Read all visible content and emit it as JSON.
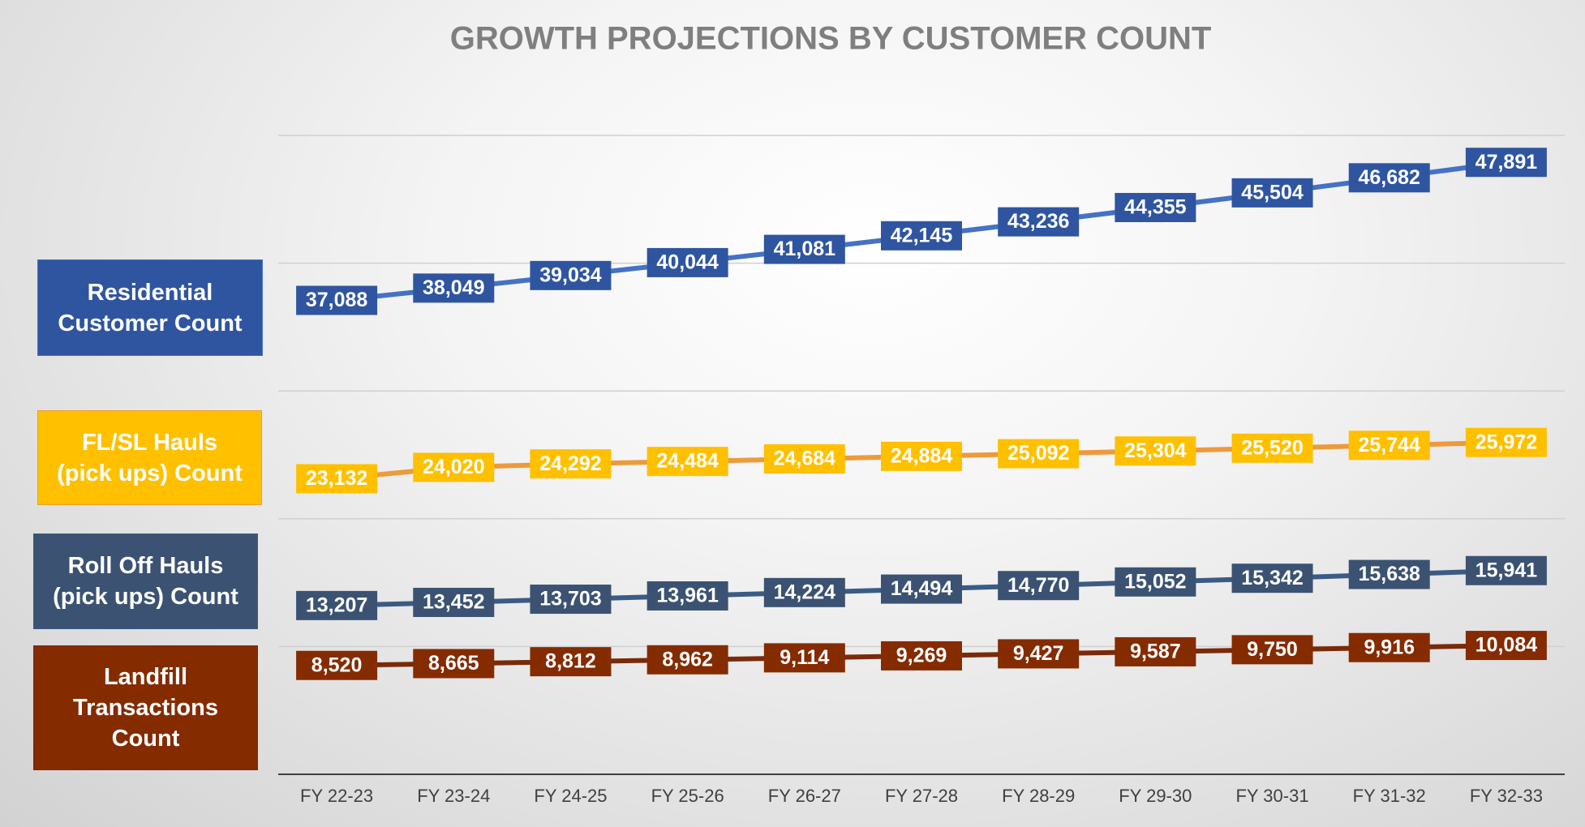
{
  "chart_data": {
    "type": "line",
    "title": "GROWTH PROJECTIONS BY CUSTOMER COUNT",
    "categories": [
      "FY 22-23",
      "FY 23-24",
      "FY 24-25",
      "FY 25-26",
      "FY 26-27",
      "FY 27-28",
      "FY 28-29",
      "FY 29-30",
      "FY 30-31",
      "FY 31-32",
      "FY 32-33"
    ],
    "ylim": [
      0,
      50000
    ],
    "yticks": [
      0,
      10000,
      20000,
      30000,
      40000,
      50000
    ],
    "grid": true,
    "series": [
      {
        "name": "Residential\nCustomer Count",
        "color": "#2f55a0",
        "line_color": "#4472c4",
        "values": [
          37088,
          38049,
          39034,
          40044,
          41081,
          42145,
          43236,
          44355,
          45504,
          46682,
          47891
        ],
        "value_labels": [
          "37,088",
          "38,049",
          "39,034",
          "40,044",
          "41,081",
          "42,145",
          "43,236",
          "44,355",
          "45,504",
          "46,682",
          "47,891"
        ]
      },
      {
        "name": "FL/SL Hauls\n(pick ups) Count",
        "color": "#ffc000",
        "line_color": "#ed9a3c",
        "values": [
          23132,
          24020,
          24292,
          24484,
          24684,
          24884,
          25092,
          25304,
          25520,
          25744,
          25972
        ],
        "value_labels": [
          "23,132",
          "24,020",
          "24,292",
          "24,484",
          "24,684",
          "24,884",
          "25,092",
          "25,304",
          "25,520",
          "25,744",
          "25,972"
        ]
      },
      {
        "name": "Roll Off Hauls\n(pick ups) Count",
        "color": "#3b5272",
        "line_color": "#3b5b85",
        "values": [
          13207,
          13452,
          13703,
          13961,
          14224,
          14494,
          14770,
          15052,
          15342,
          15638,
          15941
        ],
        "value_labels": [
          "13,207",
          "13,452",
          "13,703",
          "13,961",
          "14,224",
          "14,494",
          "14,770",
          "15,052",
          "15,342",
          "15,638",
          "15,941"
        ]
      },
      {
        "name": "Landfill\nTransactions\nCount",
        "color": "#852b00",
        "line_color": "#7a2a0a",
        "values": [
          8520,
          8665,
          8812,
          8962,
          9114,
          9269,
          9427,
          9587,
          9750,
          9916,
          10084
        ],
        "value_labels": [
          "8,520",
          "8,665",
          "8,812",
          "8,962",
          "9,114",
          "9,269",
          "9,427",
          "9,587",
          "9,750",
          "9,916",
          "10,084"
        ]
      }
    ]
  }
}
